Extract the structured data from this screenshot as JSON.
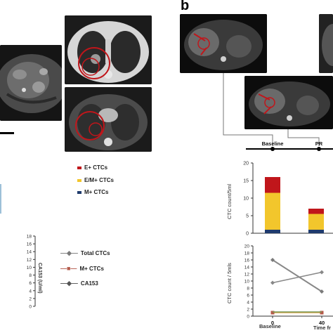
{
  "panel_b_label": "b",
  "timeline": {
    "labels": [
      "Baseline",
      "PR"
    ]
  },
  "legend_a": [
    {
      "label": "E+ CTCs",
      "color": "#c0161b"
    },
    {
      "label": "E/M+ CTCs",
      "color": "#f2c62c"
    },
    {
      "label": "M+ CTCs",
      "color": "#1f3b6d"
    }
  ],
  "legend_a2": [
    {
      "label": "Total CTCs",
      "color": "#7a7a7a",
      "marker": "◆"
    },
    {
      "label": "M+ CTCs",
      "color": "#b45a4a",
      "marker": "■"
    },
    {
      "label": "CA153",
      "color": "#555555",
      "marker": "◆"
    }
  ],
  "colors": {
    "red": "#c0161b",
    "yellow": "#f2c62c",
    "navy": "#1f3b6d"
  },
  "chart_data": [
    {
      "type": "bar",
      "ylabel": "CTC count/5ml",
      "ylim": [
        0,
        20
      ],
      "yticks": [
        "0",
        "5",
        "10",
        "15",
        "20"
      ],
      "categories": [
        "Baseline",
        "PR"
      ],
      "series": [
        {
          "name": "M+ CTCs",
          "values": [
            1,
            1
          ]
        },
        {
          "name": "E/M+ CTCs",
          "values": [
            10.5,
            4.5
          ]
        },
        {
          "name": "E+ CTCs",
          "values": [
            4.5,
            1.5
          ]
        }
      ]
    },
    {
      "type": "line",
      "ylabel": "CTC count / 5mls",
      "xlabel": "Time fr",
      "ylim": [
        0,
        20
      ],
      "yticks": [
        "0",
        "2",
        "4",
        "6",
        "8",
        "10",
        "12",
        "14",
        "16",
        "18",
        "20"
      ],
      "xticks": [
        "0",
        "40"
      ],
      "xsub": "Baseline",
      "series": [
        {
          "values": [
            16,
            7
          ]
        },
        {
          "values": [
            9.5,
            12.5
          ]
        },
        {
          "values": [
            1,
            1
          ]
        },
        {
          "values": [
            1.2,
            1.2
          ]
        }
      ]
    },
    {
      "type": "line",
      "ylabel": "CA153 (U/ml)",
      "ylim": [
        0,
        18
      ],
      "yticks": [
        "0",
        "2",
        "4",
        "6",
        "8",
        "10",
        "12",
        "14",
        "16",
        "18"
      ],
      "series": []
    }
  ]
}
